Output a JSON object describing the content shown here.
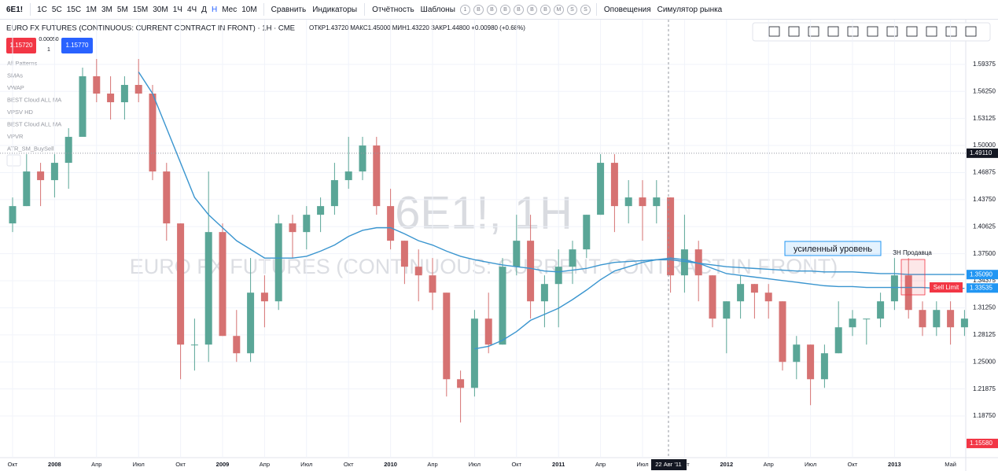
{
  "toolbar": {
    "symbol": "6E1!",
    "intervals": [
      "1С",
      "5С",
      "15С",
      "1М",
      "3М",
      "5М",
      "15М",
      "30М",
      "1Ч",
      "4Ч",
      "Д",
      "Н",
      "Мес",
      "10М"
    ],
    "compare": "Сравнить",
    "indicators": "Индикаторы",
    "reports": "Отчётность",
    "templates": "Шаблоны",
    "badges": [
      "1",
      "B",
      "B",
      "B",
      "B",
      "B",
      "B",
      "M",
      "S",
      "S"
    ],
    "alerts": "Оповещения",
    "replay": "Симулятор рынка"
  },
  "header": {
    "title": "EURO FX FUTURES (CONTINUOUS: CURRENT CONTRACT IN FRONT) · 1H · CME",
    "ohlc": "ОТКР1.43720 МАКС1.45000 МИН1.43220 ЗАКР1.44800 +0.00980 (+0.68%)"
  },
  "trade": {
    "sell": "1.15720",
    "spread": "0.00050",
    "qty": "1",
    "buy": "1.15770"
  },
  "indicators": [
    "All Patterns",
    "SMAs",
    "VWAP",
    "BEST Cloud ALL MA",
    "VPSV HD",
    "BEST Cloud ALL MA",
    "VPVR",
    "ATR_SM_BuySell"
  ],
  "watermark": {
    "symbol": "6E1!, 1H",
    "description": "EURO FX FUTURES (CONTINUOUS: CURRENT CONTRACT IN FRONT)"
  },
  "chart_data": {
    "type": "candlestick",
    "categories": [
      "Окт",
      null,
      null,
      "2008",
      null,
      null,
      "Апр",
      null,
      null,
      "Июл",
      null,
      null,
      "Окт",
      null,
      null,
      "2009",
      null,
      null,
      "Апр",
      null,
      null,
      "Июл",
      null,
      null,
      "Окт",
      null,
      null,
      "2010",
      null,
      null,
      "Апр",
      null,
      null,
      "Июл",
      null,
      null,
      "Окт",
      null,
      null,
      "2011",
      null,
      null,
      "Апр",
      null,
      null,
      "Июл",
      null,
      null,
      "Окт",
      null,
      null,
      "2012",
      null,
      null,
      "Апр",
      null,
      null,
      "Июл",
      null,
      null,
      "Окт",
      null,
      null,
      "2013",
      null,
      null,
      null,
      "Май",
      null
    ],
    "open": [
      1.41,
      1.43,
      1.47,
      1.46,
      1.48,
      1.51,
      1.58,
      1.56,
      1.55,
      1.57,
      1.56,
      1.47,
      1.41,
      1.27,
      1.27,
      1.4,
      1.28,
      1.26,
      1.33,
      1.32,
      1.41,
      1.4,
      1.42,
      1.43,
      1.46,
      1.47,
      1.5,
      1.43,
      1.39,
      1.36,
      1.35,
      1.33,
      1.23,
      1.22,
      1.3,
      1.27,
      1.36,
      1.39,
      1.32,
      1.34,
      1.36,
      1.38,
      1.42,
      1.48,
      1.43,
      1.44,
      1.43,
      1.44,
      1.35,
      1.38,
      1.35,
      1.3,
      1.32,
      1.34,
      1.33,
      1.32,
      1.25,
      1.27,
      1.23,
      1.26,
      1.29,
      1.3,
      1.3,
      1.32,
      1.35,
      1.31,
      1.29,
      1.31,
      1.29
    ],
    "high": [
      1.44,
      1.49,
      1.48,
      1.49,
      1.52,
      1.59,
      1.6,
      1.58,
      1.58,
      1.6,
      1.57,
      1.48,
      1.41,
      1.3,
      1.47,
      1.41,
      1.31,
      1.37,
      1.35,
      1.42,
      1.42,
      1.43,
      1.44,
      1.48,
      1.51,
      1.51,
      1.51,
      1.45,
      1.39,
      1.38,
      1.37,
      1.33,
      1.24,
      1.31,
      1.33,
      1.37,
      1.42,
      1.42,
      1.35,
      1.38,
      1.39,
      1.42,
      1.49,
      1.49,
      1.46,
      1.46,
      1.46,
      1.44,
      1.42,
      1.39,
      1.35,
      1.32,
      1.35,
      1.34,
      1.34,
      1.32,
      1.28,
      1.27,
      1.27,
      1.32,
      1.31,
      1.3,
      1.33,
      1.37,
      1.37,
      1.32,
      1.32,
      1.32,
      1.31
    ],
    "low": [
      1.4,
      1.43,
      1.43,
      1.44,
      1.45,
      1.51,
      1.55,
      1.53,
      1.53,
      1.55,
      1.46,
      1.39,
      1.23,
      1.24,
      1.25,
      1.28,
      1.25,
      1.25,
      1.29,
      1.31,
      1.37,
      1.38,
      1.4,
      1.42,
      1.45,
      1.46,
      1.42,
      1.38,
      1.34,
      1.32,
      1.31,
      1.21,
      1.18,
      1.21,
      1.26,
      1.27,
      1.35,
      1.3,
      1.29,
      1.29,
      1.34,
      1.37,
      1.42,
      1.4,
      1.41,
      1.39,
      1.41,
      1.33,
      1.33,
      1.32,
      1.29,
      1.26,
      1.3,
      1.3,
      1.3,
      1.24,
      1.23,
      1.2,
      1.22,
      1.26,
      1.28,
      1.27,
      1.29,
      1.31,
      1.3,
      1.28,
      1.28,
      1.27,
      1.28
    ],
    "close": [
      1.43,
      1.47,
      1.46,
      1.48,
      1.51,
      1.58,
      1.56,
      1.55,
      1.57,
      1.56,
      1.47,
      1.41,
      1.27,
      1.27,
      1.4,
      1.28,
      1.26,
      1.33,
      1.32,
      1.41,
      1.4,
      1.42,
      1.43,
      1.46,
      1.47,
      1.5,
      1.43,
      1.39,
      1.36,
      1.35,
      1.33,
      1.23,
      1.22,
      1.3,
      1.27,
      1.36,
      1.39,
      1.32,
      1.34,
      1.36,
      1.38,
      1.42,
      1.48,
      1.43,
      1.44,
      1.43,
      1.44,
      1.35,
      1.38,
      1.35,
      1.3,
      1.32,
      1.34,
      1.33,
      1.32,
      1.25,
      1.27,
      1.23,
      1.26,
      1.29,
      1.3,
      1.3,
      1.32,
      1.35,
      1.31,
      1.29,
      1.31,
      1.29,
      1.3
    ],
    "up_color": "#5aa697",
    "down_color": "#d67272",
    "series": [
      {
        "color": "#3a95cf",
        "values": [
          null,
          null,
          null,
          null,
          null,
          null,
          null,
          null,
          null,
          1.585,
          1.56,
          1.52,
          1.48,
          1.44,
          1.42,
          1.405,
          1.39,
          1.38,
          1.37,
          1.37,
          1.37,
          1.372,
          1.378,
          1.385,
          1.395,
          1.402,
          1.405,
          1.405,
          1.398,
          1.39,
          1.385,
          1.378,
          1.372,
          1.368,
          1.365,
          1.362,
          1.36,
          1.358,
          1.355,
          1.354,
          1.356,
          1.358,
          1.362,
          1.365,
          1.366,
          1.367,
          1.368,
          1.368,
          1.366,
          1.364,
          1.362,
          1.36,
          1.359,
          1.358,
          1.357,
          1.356,
          1.355,
          1.355,
          1.354,
          1.354,
          1.354,
          1.353,
          1.352,
          1.352,
          1.351,
          1.351,
          1.351,
          1.351,
          1.351
        ]
      },
      {
        "color": "#3a95cf",
        "values": [
          null,
          null,
          null,
          null,
          null,
          null,
          null,
          null,
          null,
          null,
          null,
          null,
          null,
          null,
          null,
          null,
          null,
          null,
          null,
          null,
          null,
          null,
          null,
          null,
          null,
          null,
          null,
          null,
          null,
          null,
          null,
          null,
          null,
          1.265,
          1.268,
          1.275,
          1.285,
          1.298,
          1.305,
          1.312,
          1.322,
          1.333,
          1.345,
          1.355,
          1.36,
          1.365,
          1.368,
          1.37,
          1.368,
          1.364,
          1.358,
          1.352,
          1.35,
          1.348,
          1.346,
          1.344,
          1.342,
          1.34,
          1.338,
          1.337,
          1.337,
          1.336,
          1.336,
          1.336,
          1.336,
          1.336,
          1.335,
          1.335,
          1.335
        ]
      }
    ],
    "ylim": [
      1.1394,
      1.6454
    ],
    "yticks": [
      1.59375,
      {
        "value": 1.5625,
        "label": "1.56250"
      },
      1.53125,
      {
        "value": 1.5,
        "label": "1.50000"
      },
      1.46875,
      {
        "value": 1.4375,
        "label": "1.43750"
      },
      1.40625,
      {
        "value": 1.375,
        "label": "1.37500"
      },
      1.34375,
      {
        "value": 1.3125,
        "label": "1.31250"
      },
      1.28125,
      {
        "value": 1.25,
        "label": "1.25000"
      },
      1.21875,
      {
        "value": 1.1875,
        "label": "1.18750"
      }
    ],
    "price_labels": [
      {
        "value": 1.4911,
        "label": "1.49110",
        "color": "#131722"
      },
      {
        "value": 1.3509,
        "label": "1.35090",
        "color": "#2196f3"
      },
      {
        "value": 1.33535,
        "label": "1.33535",
        "color": "#2196f3"
      },
      {
        "value": 1.1558,
        "label": "1.15580",
        "color": "#f23645"
      }
    ],
    "crosshair_label": "22 Авг '11",
    "annotations": {
      "level": "усиленный уровень",
      "zone": "ЗН Продавца",
      "order": "Sell Limit"
    }
  }
}
